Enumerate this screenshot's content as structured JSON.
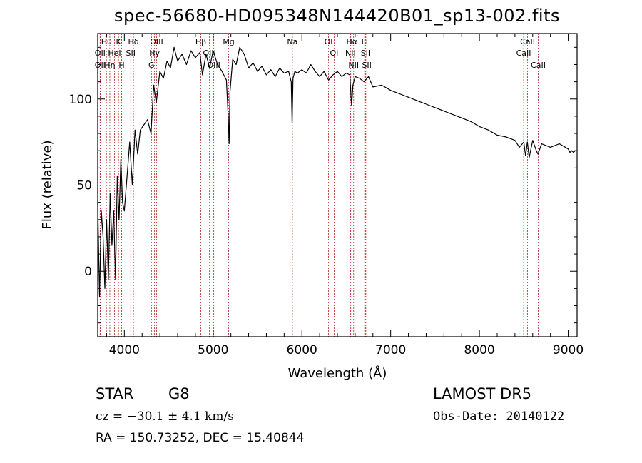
{
  "header": {
    "title": "spec-56680-HD095348N144420B01_sp13-002.fits"
  },
  "info": {
    "obj_class": "STAR",
    "subclass": "G8",
    "survey": "LAMOST  DR5",
    "cz": "cz = −30.1 ± 4.1 km/s",
    "obs_date": "Obs-Date: 20140122",
    "radec": "RA = 150.73252, DEC =  15.40844"
  },
  "colors": {
    "line_marker": "#b22222",
    "spectrum": "#000000",
    "axes": "#000000"
  },
  "chart_data": {
    "type": "line",
    "xlabel": "Wavelength (Å)",
    "ylabel": "Flux (relative)",
    "xlim": [
      3700,
      9100
    ],
    "ylim": [
      -38,
      138
    ],
    "xticks": [
      4000,
      5000,
      6000,
      7000,
      8000,
      9000
    ],
    "xtick_labels": [
      "4000",
      "5000",
      "6000",
      "7000",
      "8000",
      "9000"
    ],
    "yticks": [
      0,
      50,
      100
    ],
    "ytick_labels": [
      "0",
      "50",
      "100"
    ],
    "grid": false,
    "series": [
      {
        "x": [
          3700,
          3720,
          3740,
          3760,
          3780,
          3800,
          3820,
          3840,
          3860,
          3880,
          3900,
          3920,
          3940,
          3960,
          3980,
          4000,
          4030,
          4060,
          4090,
          4120,
          4150,
          4180,
          4220,
          4260,
          4300,
          4330,
          4360,
          4400,
          4440,
          4480,
          4520,
          4560,
          4600,
          4650,
          4700,
          4750,
          4800,
          4850,
          4880,
          4920,
          4960,
          5000,
          5050,
          5100,
          5150,
          5170,
          5180,
          5190,
          5220,
          5260,
          5300,
          5350,
          5400,
          5450,
          5500,
          5550,
          5600,
          5650,
          5700,
          5750,
          5800,
          5850,
          5880,
          5890,
          5900,
          5920,
          5950,
          6000,
          6050,
          6100,
          6150,
          6200,
          6250,
          6300,
          6350,
          6400,
          6450,
          6500,
          6540,
          6560,
          6575,
          6600,
          6650,
          6700,
          6750,
          6800,
          6900,
          7000,
          7100,
          7200,
          7300,
          7400,
          7500,
          7600,
          7700,
          7800,
          7900,
          8000,
          8100,
          8200,
          8300,
          8400,
          8450,
          8500,
          8520,
          8540,
          8560,
          8600,
          8640,
          8660,
          8700,
          8800,
          8900,
          9000,
          9020,
          9040,
          9060,
          9080
        ],
        "y": [
          40,
          -15,
          35,
          20,
          -10,
          30,
          -5,
          45,
          15,
          35,
          -5,
          55,
          30,
          65,
          40,
          35,
          55,
          75,
          50,
          82,
          68,
          82,
          85,
          88,
          80,
          108,
          98,
          116,
          112,
          122,
          118,
          130,
          122,
          126,
          120,
          128,
          124,
          127,
          114,
          126,
          118,
          128,
          120,
          116,
          111,
          90,
          74,
          104,
          123,
          120,
          130,
          126,
          118,
          121,
          116,
          119,
          114,
          117,
          113,
          118,
          115,
          116,
          110,
          86,
          112,
          116,
          115,
          117,
          115,
          120,
          116,
          113,
          116,
          111,
          114,
          116,
          113,
          115,
          114,
          96,
          108,
          113,
          112,
          110,
          113,
          107,
          108,
          105,
          103,
          101,
          99,
          97,
          95,
          93,
          91,
          89,
          87,
          84,
          82,
          79,
          78,
          76,
          72,
          75,
          67,
          75,
          66,
          76,
          70,
          68,
          74,
          72,
          74,
          71,
          69,
          70,
          69,
          70
        ]
      }
    ],
    "annotations": [
      {
        "label": "Hθ",
        "x": 3798
      },
      {
        "label": "OII",
        "x": 3727
      },
      {
        "label": "OII",
        "x": 3727
      },
      {
        "label": "Hη",
        "x": 3836
      },
      {
        "label": "K",
        "x": 3934
      },
      {
        "label": "HeI",
        "x": 3889
      },
      {
        "label": "H",
        "x": 3969
      },
      {
        "label": "SII",
        "x": 4072
      },
      {
        "label": "Hδ",
        "x": 4102
      },
      {
        "label": "OIII",
        "x": 4363
      },
      {
        "label": "Hγ",
        "x": 4340
      },
      {
        "label": "G",
        "x": 4305
      },
      {
        "label": "Hβ",
        "x": 4861
      },
      {
        "label": "OIII",
        "x": 4959
      },
      {
        "label": "OIII",
        "x": 5007
      },
      {
        "label": "Mg",
        "x": 5175
      },
      {
        "label": "Na",
        "x": 5893
      },
      {
        "label": "OI",
        "x": 6300
      },
      {
        "label": "OI",
        "x": 6363
      },
      {
        "label": "Hα",
        "x": 6563
      },
      {
        "label": "NII",
        "x": 6548
      },
      {
        "label": "NII",
        "x": 6583
      },
      {
        "label": "SII",
        "x": 6717
      },
      {
        "label": "Li",
        "x": 6707
      },
      {
        "label": "SII",
        "x": 6731
      },
      {
        "label": "CaII",
        "x": 8542
      },
      {
        "label": "CaII",
        "x": 8498
      },
      {
        "label": "CaII",
        "x": 8662
      }
    ]
  }
}
